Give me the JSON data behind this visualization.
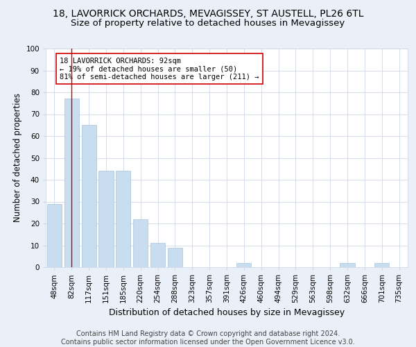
{
  "title_line1": "18, LAVORRICK ORCHARDS, MEVAGISSEY, ST AUSTELL, PL26 6TL",
  "title_line2": "Size of property relative to detached houses in Mevagissey",
  "xlabel": "Distribution of detached houses by size in Mevagissey",
  "ylabel": "Number of detached properties",
  "footer": "Contains HM Land Registry data © Crown copyright and database right 2024.\nContains public sector information licensed under the Open Government Licence v3.0.",
  "categories": [
    "48sqm",
    "82sqm",
    "117sqm",
    "151sqm",
    "185sqm",
    "220sqm",
    "254sqm",
    "288sqm",
    "323sqm",
    "357sqm",
    "391sqm",
    "426sqm",
    "460sqm",
    "494sqm",
    "529sqm",
    "563sqm",
    "598sqm",
    "632sqm",
    "666sqm",
    "701sqm",
    "735sqm"
  ],
  "values": [
    29,
    77,
    65,
    44,
    44,
    22,
    11,
    9,
    0,
    0,
    0,
    2,
    0,
    0,
    0,
    0,
    0,
    2,
    0,
    2,
    0
  ],
  "bar_color": "#c9ddf0",
  "bar_edgecolor": "#a8c4dc",
  "vline_x": 1,
  "vline_color": "#cc0000",
  "annotation_text": "18 LAVORRICK ORCHARDS: 92sqm\n← 19% of detached houses are smaller (50)\n81% of semi-detached houses are larger (211) →",
  "annotation_box_color": "#ffffff",
  "annotation_box_edgecolor": "#cc0000",
  "ylim": [
    0,
    100
  ],
  "yticks": [
    0,
    10,
    20,
    30,
    40,
    50,
    60,
    70,
    80,
    90,
    100
  ],
  "grid_color": "#d0d8e8",
  "background_color": "#eaf0f8",
  "plot_background": "#ffffff",
  "title_fontsize": 10,
  "subtitle_fontsize": 9.5,
  "tick_fontsize": 7.5,
  "xlabel_fontsize": 9,
  "ylabel_fontsize": 8.5,
  "footer_fontsize": 7,
  "annotation_fontsize": 7.5
}
